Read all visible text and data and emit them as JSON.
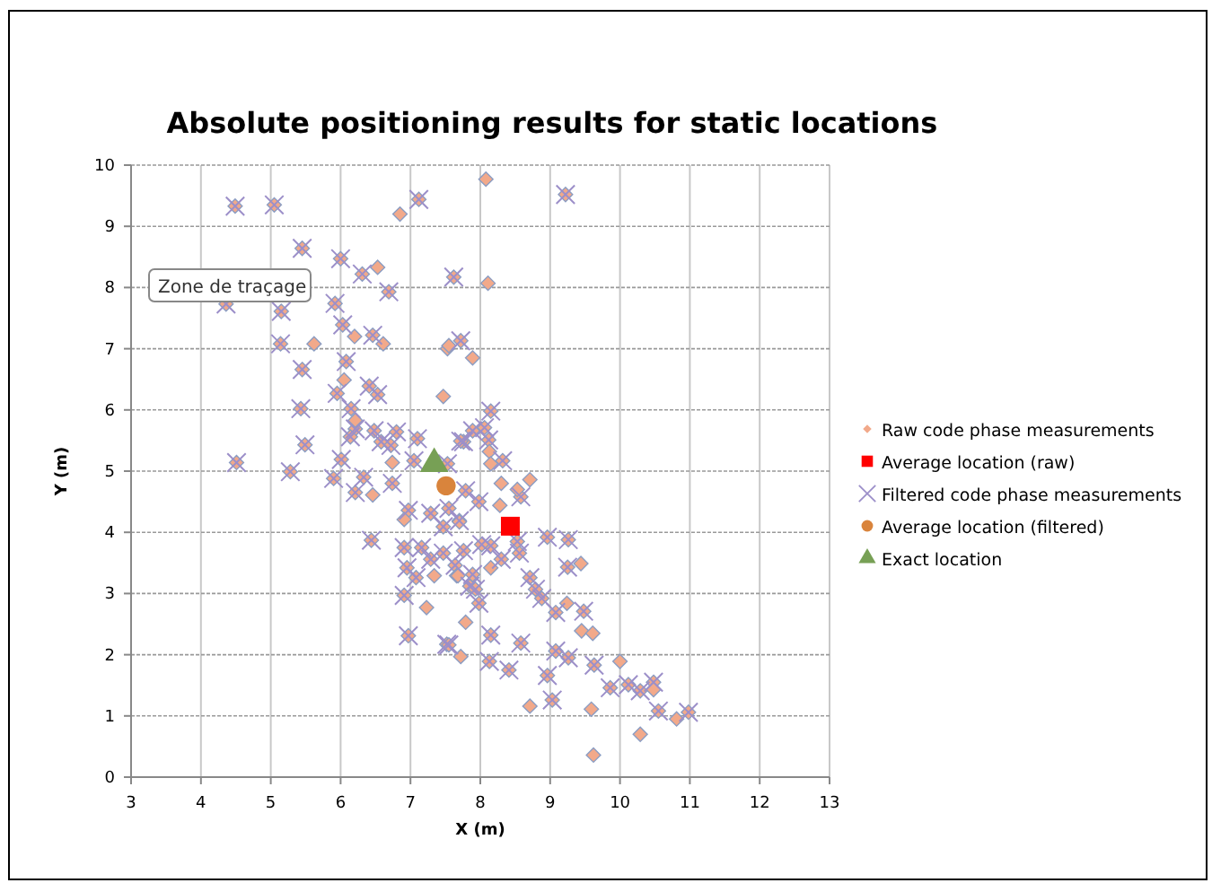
{
  "chart_data": {
    "type": "scatter",
    "title": "Absolute positioning results for static locations",
    "xlabel": "X (m)",
    "ylabel": "Y (m)",
    "xlim": [
      3,
      13
    ],
    "ylim": [
      0,
      10
    ],
    "xticks": [
      3,
      4,
      5,
      6,
      7,
      8,
      9,
      10,
      11,
      12,
      13
    ],
    "yticks": [
      0,
      1,
      2,
      3,
      4,
      5,
      6,
      7,
      8,
      9,
      10
    ],
    "grid": true,
    "legend": "right",
    "annotations": [
      "Zone de traçage"
    ],
    "series": [
      {
        "name": "Raw code phase measurements",
        "color": "#f2a98a",
        "marker": "diamond",
        "x": [
          4.49,
          5.05,
          5.45,
          6.0,
          6.31,
          6.69,
          4.36,
          5.15,
          5.92,
          6.03,
          6.46,
          5.14,
          5.45,
          6.08,
          5.95,
          6.41,
          6.53,
          5.43,
          6.15,
          6.21,
          6.48,
          6.8,
          6.14,
          6.58,
          6.72,
          5.49,
          7.1,
          7.72,
          7.62,
          7.12,
          9.22,
          4.51,
          6.01,
          7.05,
          7.76,
          7.89,
          8.15,
          8.06,
          7.72,
          8.12,
          8.32,
          7.53,
          5.28,
          5.9,
          6.33,
          6.21,
          6.74,
          6.97,
          7.29,
          7.55,
          7.47,
          6.44,
          6.91,
          7.16,
          7.47,
          7.76,
          6.95,
          7.29,
          7.64,
          7.08,
          7.85,
          6.91,
          6.97,
          7.52,
          8.58,
          7.98,
          7.79,
          7.7,
          8.53,
          8.96,
          9.26,
          9.25,
          8.56,
          8.15,
          8.02,
          8.3,
          8.71,
          7.89,
          8.79,
          7.93,
          8.88,
          7.98,
          9.08,
          9.48,
          8.15,
          8.58,
          7.55,
          8.13,
          8.41,
          9.08,
          9.26,
          9.63,
          8.96,
          9.86,
          10.12,
          10.29,
          10.48,
          9.03,
          10.55,
          10.98,
          6.53,
          6.2,
          6.61,
          5.62,
          6.05,
          6.21,
          7.47,
          7.53,
          7.89,
          6.85,
          6.74,
          8.08,
          8.11,
          7.55,
          8.13,
          8.15,
          6.46,
          6.91,
          7.7,
          7.34,
          7.66,
          7.23,
          7.79,
          7.72,
          8.3,
          8.53,
          8.71,
          8.28,
          9.44,
          8.15,
          7.68,
          9.24,
          9.45,
          9.61,
          10.0,
          10.48,
          8.71,
          9.59,
          10.81,
          10.29,
          9.62
        ],
        "values": [
          9.33,
          9.35,
          8.64,
          8.47,
          8.22,
          7.93,
          7.73,
          7.61,
          7.74,
          7.39,
          7.22,
          7.08,
          6.66,
          6.79,
          6.27,
          6.39,
          6.25,
          6.02,
          6.02,
          5.69,
          5.66,
          5.64,
          5.56,
          5.48,
          5.42,
          5.43,
          5.53,
          7.13,
          8.17,
          9.44,
          9.52,
          5.14,
          5.19,
          5.17,
          5.48,
          5.66,
          5.98,
          5.71,
          5.49,
          5.51,
          5.17,
          5.12,
          4.99,
          4.88,
          4.9,
          4.65,
          4.8,
          4.36,
          4.31,
          4.39,
          4.09,
          3.87,
          3.75,
          3.75,
          3.66,
          3.7,
          3.42,
          3.56,
          3.46,
          3.26,
          3.12,
          2.97,
          2.31,
          2.17,
          4.58,
          4.5,
          4.68,
          4.19,
          3.85,
          3.92,
          3.88,
          3.43,
          3.66,
          3.78,
          3.8,
          3.56,
          3.26,
          3.31,
          3.07,
          3.07,
          2.92,
          2.84,
          2.69,
          2.71,
          2.32,
          2.19,
          2.16,
          1.89,
          1.75,
          2.06,
          1.95,
          1.83,
          1.66,
          1.46,
          1.51,
          1.41,
          1.55,
          1.26,
          1.08,
          1.06,
          8.33,
          7.2,
          7.08,
          7.08,
          6.49,
          5.83,
          6.22,
          7.0,
          6.85,
          9.2,
          5.14,
          9.77,
          8.07,
          7.05,
          5.32,
          5.12,
          4.61,
          4.21,
          4.17,
          3.29,
          3.29,
          2.77,
          2.53,
          1.97,
          4.8,
          4.7,
          4.86,
          4.44,
          3.49,
          3.42,
          3.29,
          2.84,
          2.39,
          2.35,
          1.89,
          1.43,
          1.16,
          1.11,
          0.95,
          0.7,
          0.36
        ]
      },
      {
        "name": "Average location (raw)",
        "color": "#ff0000",
        "marker": "square",
        "x": [
          8.43
        ],
        "values": [
          4.1
        ]
      },
      {
        "name": "Filtered code phase measurements",
        "color": "#9c8fc9",
        "marker": "cross",
        "x": [
          4.49,
          5.05,
          5.45,
          6.0,
          6.31,
          6.69,
          4.36,
          5.15,
          5.92,
          6.03,
          6.46,
          5.14,
          5.45,
          6.08,
          5.95,
          6.41,
          6.53,
          5.43,
          6.15,
          6.21,
          6.48,
          6.8,
          6.14,
          6.58,
          6.72,
          5.49,
          7.1,
          7.72,
          7.62,
          7.12,
          9.22,
          4.51,
          6.01,
          7.05,
          7.76,
          7.89,
          8.15,
          8.06,
          7.72,
          8.12,
          8.32,
          7.53,
          5.28,
          5.9,
          6.33,
          6.21,
          6.74,
          6.97,
          7.29,
          7.55,
          7.47,
          6.44,
          6.91,
          7.16,
          7.47,
          7.76,
          6.95,
          7.29,
          7.64,
          7.08,
          7.85,
          6.91,
          6.97,
          7.52,
          8.58,
          7.98,
          7.79,
          7.7,
          8.53,
          8.96,
          9.26,
          9.25,
          8.56,
          8.15,
          8.02,
          8.3,
          8.71,
          7.89,
          8.79,
          7.93,
          8.88,
          7.98,
          9.08,
          9.48,
          8.15,
          8.58,
          7.55,
          8.13,
          8.41,
          9.08,
          9.26,
          9.63,
          8.96,
          9.86,
          10.12,
          10.29,
          10.48,
          9.03,
          10.55,
          10.98
        ],
        "values": [
          9.33,
          9.35,
          8.64,
          8.47,
          8.22,
          7.93,
          7.73,
          7.61,
          7.74,
          7.39,
          7.22,
          7.08,
          6.66,
          6.79,
          6.27,
          6.39,
          6.25,
          6.02,
          6.02,
          5.69,
          5.66,
          5.64,
          5.56,
          5.48,
          5.42,
          5.43,
          5.53,
          7.13,
          8.17,
          9.44,
          9.52,
          5.14,
          5.19,
          5.17,
          5.48,
          5.66,
          5.98,
          5.71,
          5.49,
          5.51,
          5.17,
          5.12,
          4.99,
          4.88,
          4.9,
          4.65,
          4.8,
          4.36,
          4.31,
          4.39,
          4.09,
          3.87,
          3.75,
          3.75,
          3.66,
          3.7,
          3.42,
          3.56,
          3.46,
          3.26,
          3.12,
          2.97,
          2.31,
          2.17,
          4.58,
          4.5,
          4.68,
          4.19,
          3.85,
          3.92,
          3.88,
          3.43,
          3.66,
          3.78,
          3.8,
          3.56,
          3.26,
          3.31,
          3.07,
          3.07,
          2.92,
          2.84,
          2.69,
          2.71,
          2.32,
          2.19,
          2.16,
          1.89,
          1.75,
          2.06,
          1.95,
          1.83,
          1.66,
          1.46,
          1.51,
          1.41,
          1.55,
          1.26,
          1.08,
          1.06
        ]
      },
      {
        "name": "Average location (filtered)",
        "color": "#d9843c",
        "marker": "circle",
        "x": [
          7.51
        ],
        "values": [
          4.76
        ]
      },
      {
        "name": "Exact location",
        "color": "#77a055",
        "marker": "triangle",
        "x": [
          7.34
        ],
        "values": [
          5.12
        ]
      }
    ]
  }
}
